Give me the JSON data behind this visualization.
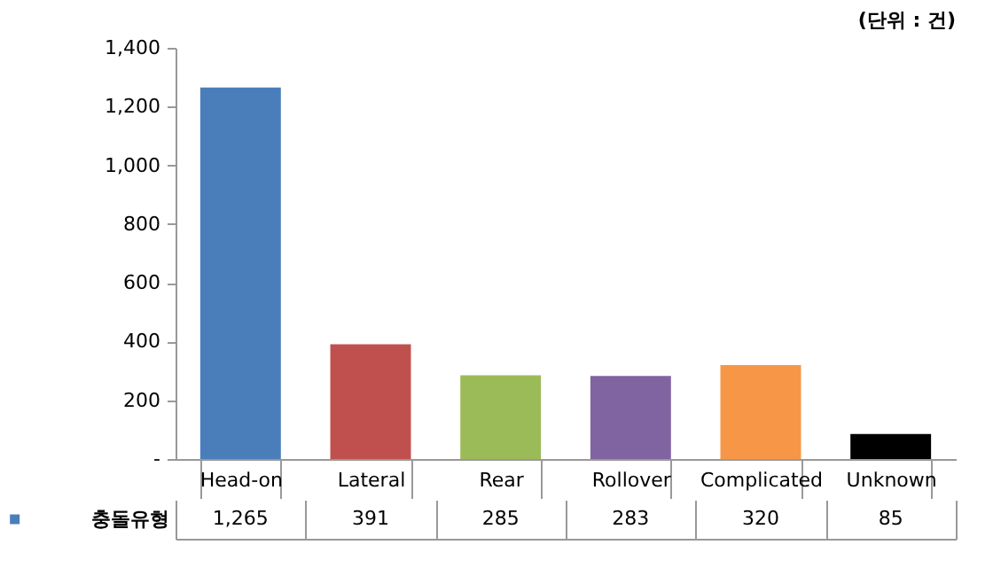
{
  "chart_data": {
    "type": "bar",
    "annotations": [
      "(단위 : 건)"
    ],
    "categories": [
      "Head-on",
      "Lateral",
      "Rear",
      "Rollover",
      "Complicated",
      "Unknown"
    ],
    "series": [
      {
        "name": "충돌유형",
        "values": [
          1265,
          391,
          285,
          283,
          320,
          85
        ],
        "value_labels": [
          "1,265",
          "391",
          "285",
          "283",
          "320",
          "85"
        ],
        "colors": [
          "#4a7ebb",
          "#c0504d",
          "#9bbb59",
          "#8064a2",
          "#f79646",
          "#000000"
        ]
      }
    ],
    "ylim": [
      0,
      1400
    ],
    "yticks": [
      {
        "value": 0,
        "label": "-"
      },
      {
        "value": 200,
        "label": "200"
      },
      {
        "value": 400,
        "label": "400"
      },
      {
        "value": 600,
        "label": "600"
      },
      {
        "value": 800,
        "label": "800"
      },
      {
        "value": 1000,
        "label": "1,000"
      },
      {
        "value": 1200,
        "label": "1,200"
      },
      {
        "value": 1400,
        "label": "1,400"
      }
    ],
    "legend": "bottom left",
    "grid": false
  }
}
